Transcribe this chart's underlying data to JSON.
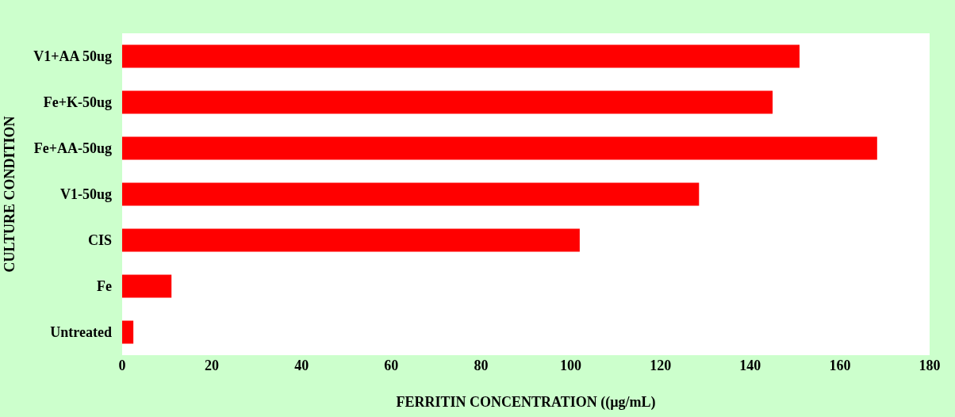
{
  "chart_data": {
    "type": "bar",
    "orientation": "horizontal",
    "xlabel": "FERRITIN CONCENTRATION ((µg/mL)",
    "ylabel": "CULTURE CONDITION",
    "categories": [
      "V1+AA 50ug",
      "Fe+K-50ug",
      "Fe+AA-50ug",
      "V1-50ug",
      "CIS",
      "Fe",
      "Untreated"
    ],
    "values": [
      151,
      145,
      168.3,
      128.6,
      102,
      11,
      2.5
    ],
    "color": "#ff0000",
    "xlim": [
      0,
      180
    ],
    "xticks": [
      0,
      20,
      40,
      60,
      80,
      100,
      120,
      140,
      160,
      180
    ]
  }
}
